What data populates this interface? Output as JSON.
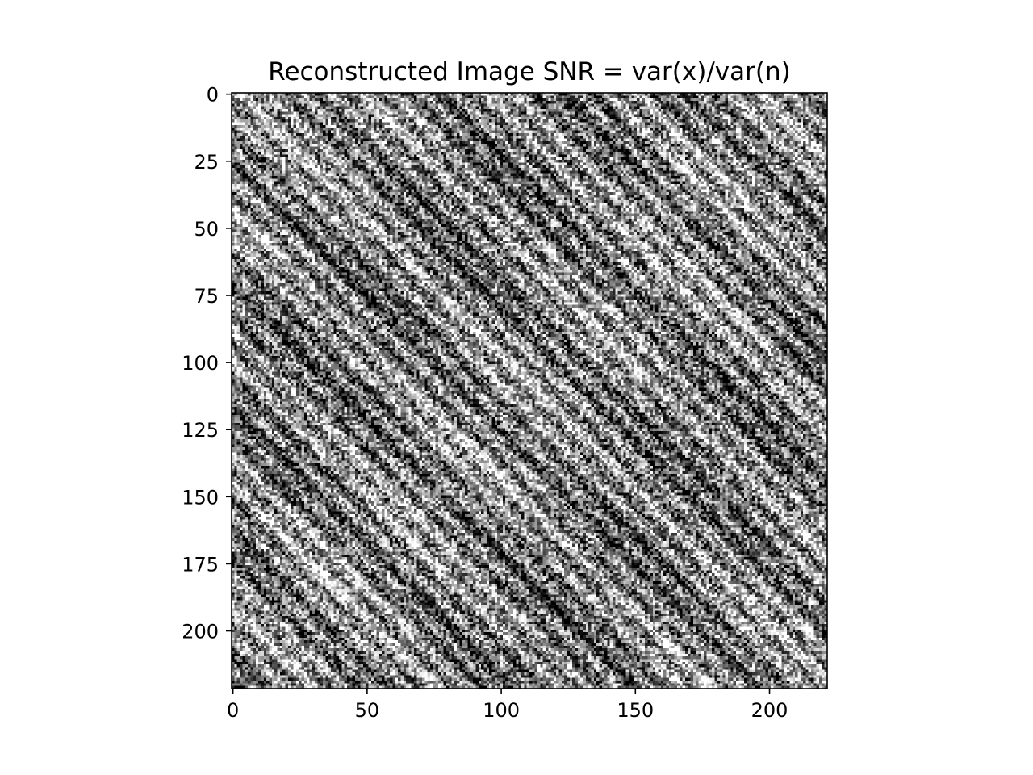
{
  "chart_data": {
    "type": "heatmap",
    "title": "Reconstructed Image SNR = var(x)/var(n)",
    "colormap": "gray",
    "image_size": [
      222,
      222
    ],
    "xlim": [
      -0.5,
      221.5
    ],
    "ylim": [
      221.5,
      -0.5
    ],
    "xticks": [
      0,
      50,
      100,
      150,
      200
    ],
    "yticks": [
      0,
      25,
      50,
      75,
      100,
      125,
      150,
      175,
      200
    ],
    "texture": "noisy grayscale image with diagonal stripes running from upper-left to lower-right",
    "grid": false
  }
}
